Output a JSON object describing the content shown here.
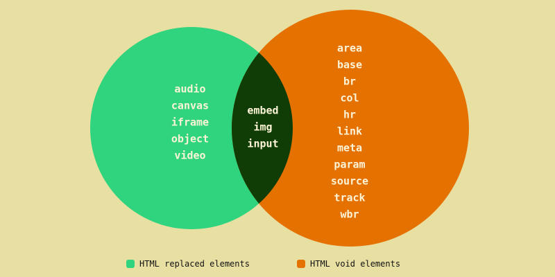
{
  "colors": {
    "background": "#e8dfa2",
    "left_set": "#31d47e",
    "right_set": "#e57200",
    "overlap": "#0f3d05",
    "label_text": "#fdf4d8"
  },
  "venn": {
    "left_only": [
      "audio",
      "canvas",
      "iframe",
      "object",
      "video"
    ],
    "intersection": [
      "embed",
      "img",
      "input"
    ],
    "right_only": [
      "area",
      "base",
      "br",
      "col",
      "hr",
      "link",
      "meta",
      "param",
      "source",
      "track",
      "wbr"
    ]
  },
  "legend": {
    "left": "HTML replaced elements",
    "right": "HTML void elements"
  }
}
